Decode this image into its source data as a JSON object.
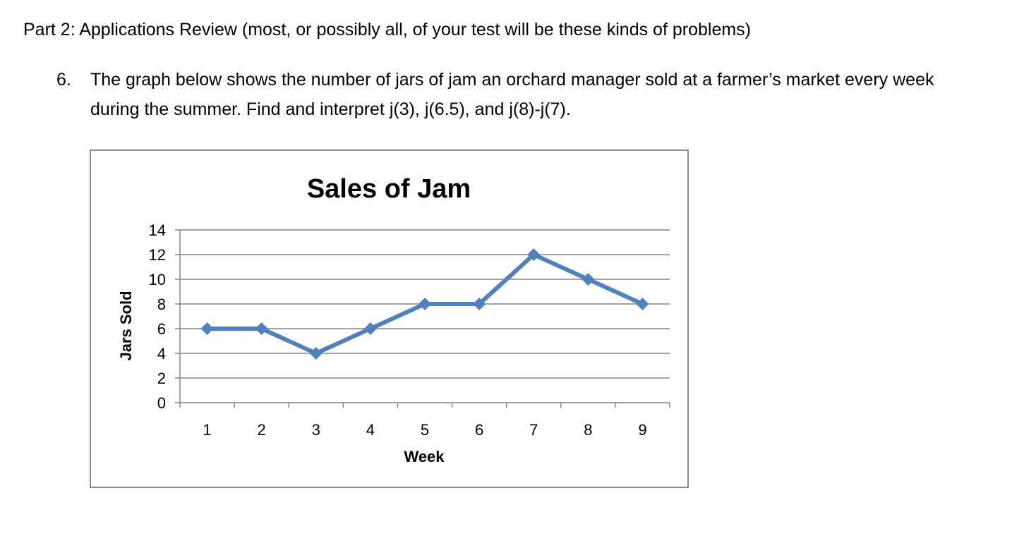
{
  "heading": "Part 2:  Applications Review  (most, or possibly all, of your test will be these kinds of problems)",
  "problem": {
    "number": "6.",
    "line1": "The graph below shows the number of jars of jam an orchard manager sold at a farmer’s market every week",
    "line2": "during the summer.  Find and interpret j(3), j(6.5), and j(8)-j(7)."
  },
  "chart_data": {
    "type": "line",
    "title": "Sales of Jam",
    "xlabel": "Week",
    "ylabel": "Jars Sold",
    "x": [
      1,
      2,
      3,
      4,
      5,
      6,
      7,
      8,
      9
    ],
    "x_tick_labels": [
      "1",
      "2",
      "3",
      "4",
      "5",
      "6",
      "7",
      "8",
      "9"
    ],
    "y_tick_labels": [
      "0",
      "2",
      "4",
      "6",
      "8",
      "10",
      "12",
      "14"
    ],
    "ylim": [
      0,
      14
    ],
    "y_tick_step": 2,
    "grid": "horizontal",
    "series": [
      {
        "values": [
          6,
          6,
          4,
          6,
          8,
          8,
          12,
          10,
          8
        ],
        "color": "#4f81bd",
        "marker": "diamond"
      }
    ],
    "gridline_color": "#868686",
    "axis_color": "#868686"
  }
}
